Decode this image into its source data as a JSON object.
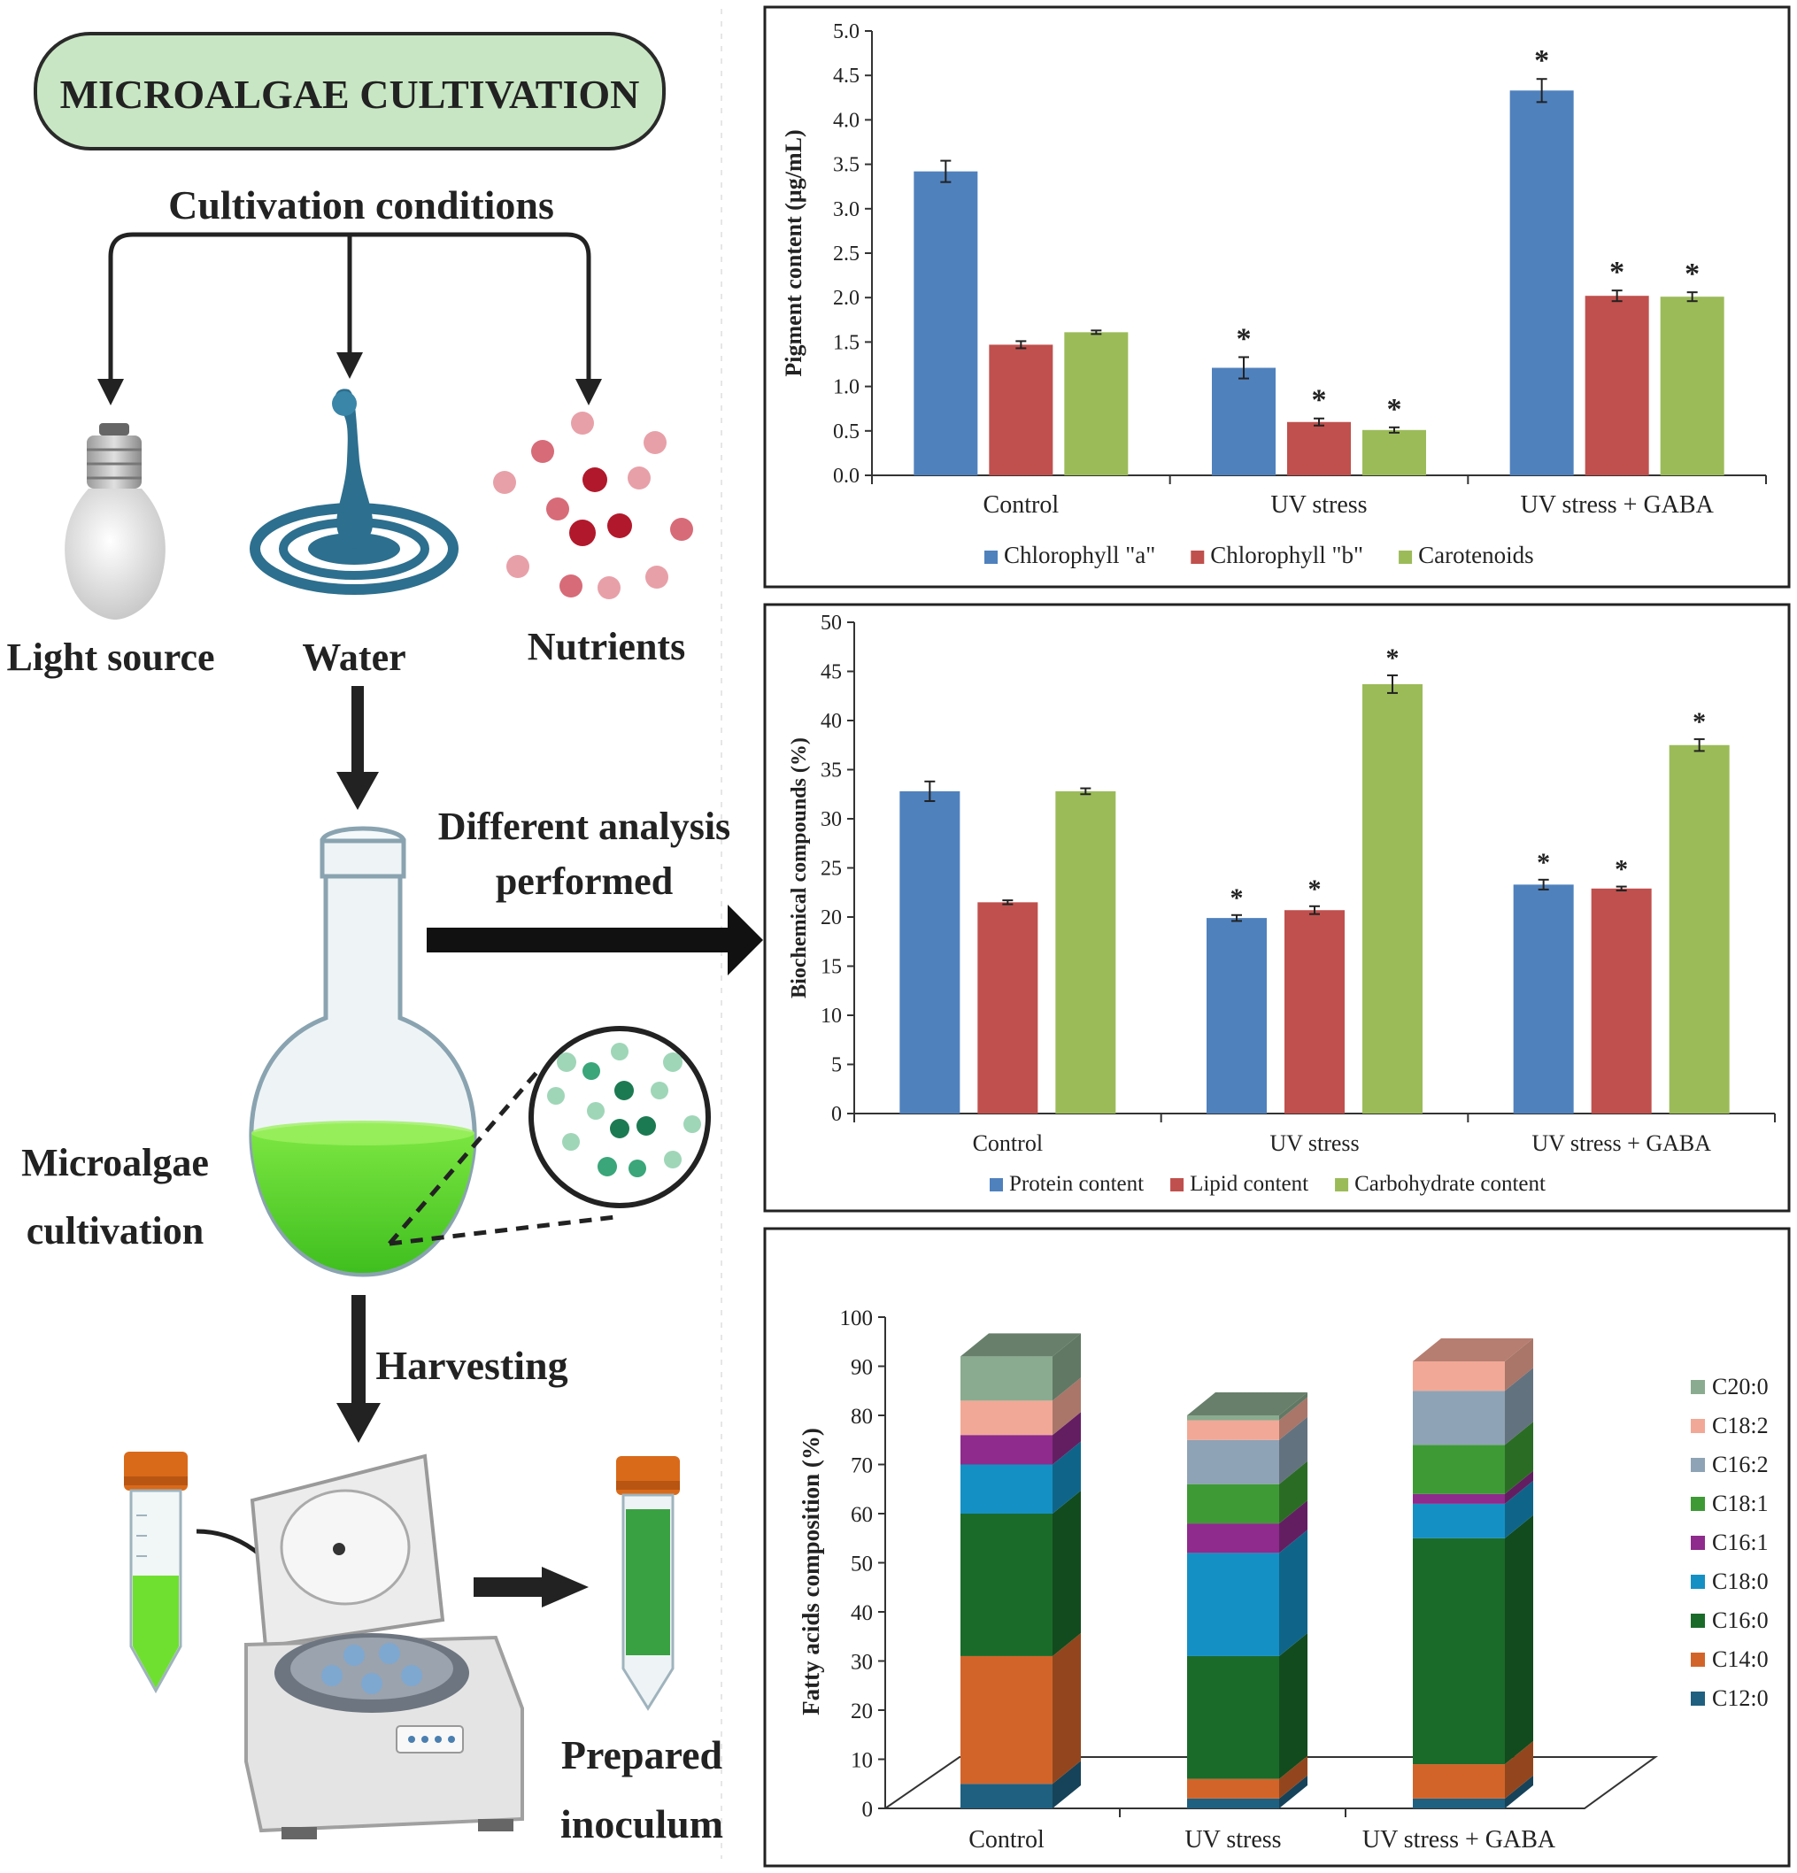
{
  "flow": {
    "title": "MICROALGAE CULTIVATION",
    "conditions": "Cultivation conditions",
    "light": "Light source",
    "water": "Water",
    "nutrients": "Nutrients",
    "analysis_line1": "Different analysis",
    "analysis_line2": "performed",
    "cultivation_line1": "Microalgae",
    "cultivation_line2": "cultivation",
    "harvesting": "Harvesting",
    "inoculum_line1": "Prepared",
    "inoculum_line2": "inoculum"
  },
  "colors": {
    "title_box_fill": "#c8e6c3",
    "blue": "#4f81bd",
    "red": "#c0504d",
    "green": "#9bbb59"
  },
  "chart_data": [
    {
      "type": "bar",
      "ylabel": "Pigment content (µg/mL)",
      "ylim": [
        0,
        5.0
      ],
      "yticks": [
        "0.0",
        "0.5",
        "1.0",
        "1.5",
        "2.0",
        "2.5",
        "3.0",
        "3.5",
        "4.0",
        "4.5",
        "5.0"
      ],
      "categories": [
        "Control",
        "UV stress",
        "UV stress + GABA"
      ],
      "series": [
        {
          "name": "Chlorophyll \"a\"",
          "color": "#4f81bd",
          "values": [
            3.42,
            1.21,
            4.33
          ],
          "errors": [
            0.12,
            0.12,
            0.13
          ],
          "sig": [
            "",
            "*",
            "*"
          ]
        },
        {
          "name": "Chlorophyll \"b\"",
          "color": "#c0504d",
          "values": [
            1.47,
            0.6,
            2.02
          ],
          "errors": [
            0.04,
            0.04,
            0.06
          ],
          "sig": [
            "",
            "*",
            "*"
          ]
        },
        {
          "name": "Carotenoids",
          "color": "#9bbb59",
          "values": [
            1.61,
            0.51,
            2.01
          ],
          "errors": [
            0.02,
            0.03,
            0.05
          ],
          "sig": [
            "",
            "*",
            "*"
          ]
        }
      ],
      "legend": "bottom"
    },
    {
      "type": "bar",
      "ylabel": "Biochemical compounds (%)",
      "ylim": [
        0,
        50
      ],
      "yticks": [
        "0",
        "5",
        "10",
        "15",
        "20",
        "25",
        "30",
        "35",
        "40",
        "45",
        "50"
      ],
      "categories": [
        "Control",
        "UV stress",
        "UV stress + GABA"
      ],
      "series": [
        {
          "name": "Protein content",
          "color": "#4f81bd",
          "values": [
            32.8,
            19.9,
            23.3
          ],
          "errors": [
            1.0,
            0.3,
            0.5
          ],
          "sig": [
            "",
            "*",
            "*"
          ]
        },
        {
          "name": "Lipid content",
          "color": "#c0504d",
          "values": [
            21.5,
            20.7,
            22.9
          ],
          "errors": [
            0.2,
            0.4,
            0.2
          ],
          "sig": [
            "",
            "*",
            "*"
          ]
        },
        {
          "name": "Carbohydrate content",
          "color": "#9bbb59",
          "values": [
            32.8,
            43.7,
            37.5
          ],
          "errors": [
            0.3,
            0.9,
            0.6
          ],
          "sig": [
            "",
            "*",
            "*"
          ]
        }
      ],
      "legend": "bottom"
    },
    {
      "type": "bar",
      "stacked": true,
      "style": "3d",
      "ylabel": "Fatty acids composition (%)",
      "ylim": [
        0,
        100
      ],
      "yticks": [
        "0",
        "10",
        "20",
        "30",
        "40",
        "50",
        "60",
        "70",
        "80",
        "90",
        "100"
      ],
      "categories": [
        "Control",
        "UV stress",
        "UV stress + GABA"
      ],
      "series": [
        {
          "name": "C12:0",
          "color": "#1f5f7f",
          "values": [
            5,
            2,
            2
          ]
        },
        {
          "name": "C14:0",
          "color": "#d2642a",
          "values": [
            26,
            4,
            7
          ]
        },
        {
          "name": "C16:0",
          "color": "#1a6b2a",
          "values": [
            29,
            25,
            46
          ]
        },
        {
          "name": "C18:0",
          "color": "#1590c4",
          "values": [
            10,
            21,
            7
          ]
        },
        {
          "name": "C16:1",
          "color": "#8e2b8c",
          "values": [
            6,
            6,
            2
          ]
        },
        {
          "name": "C18:1",
          "color": "#3e9a35",
          "values": [
            0,
            8,
            10
          ]
        },
        {
          "name": "C16:2",
          "color": "#8ea3b5",
          "values": [
            0,
            9,
            11
          ]
        },
        {
          "name": "C18:2",
          "color": "#f2a896",
          "values": [
            7,
            4,
            6
          ]
        },
        {
          "name": "C20:0",
          "color": "#8aab8f",
          "values": [
            9,
            1,
            0
          ]
        }
      ],
      "legend": "right"
    }
  ]
}
